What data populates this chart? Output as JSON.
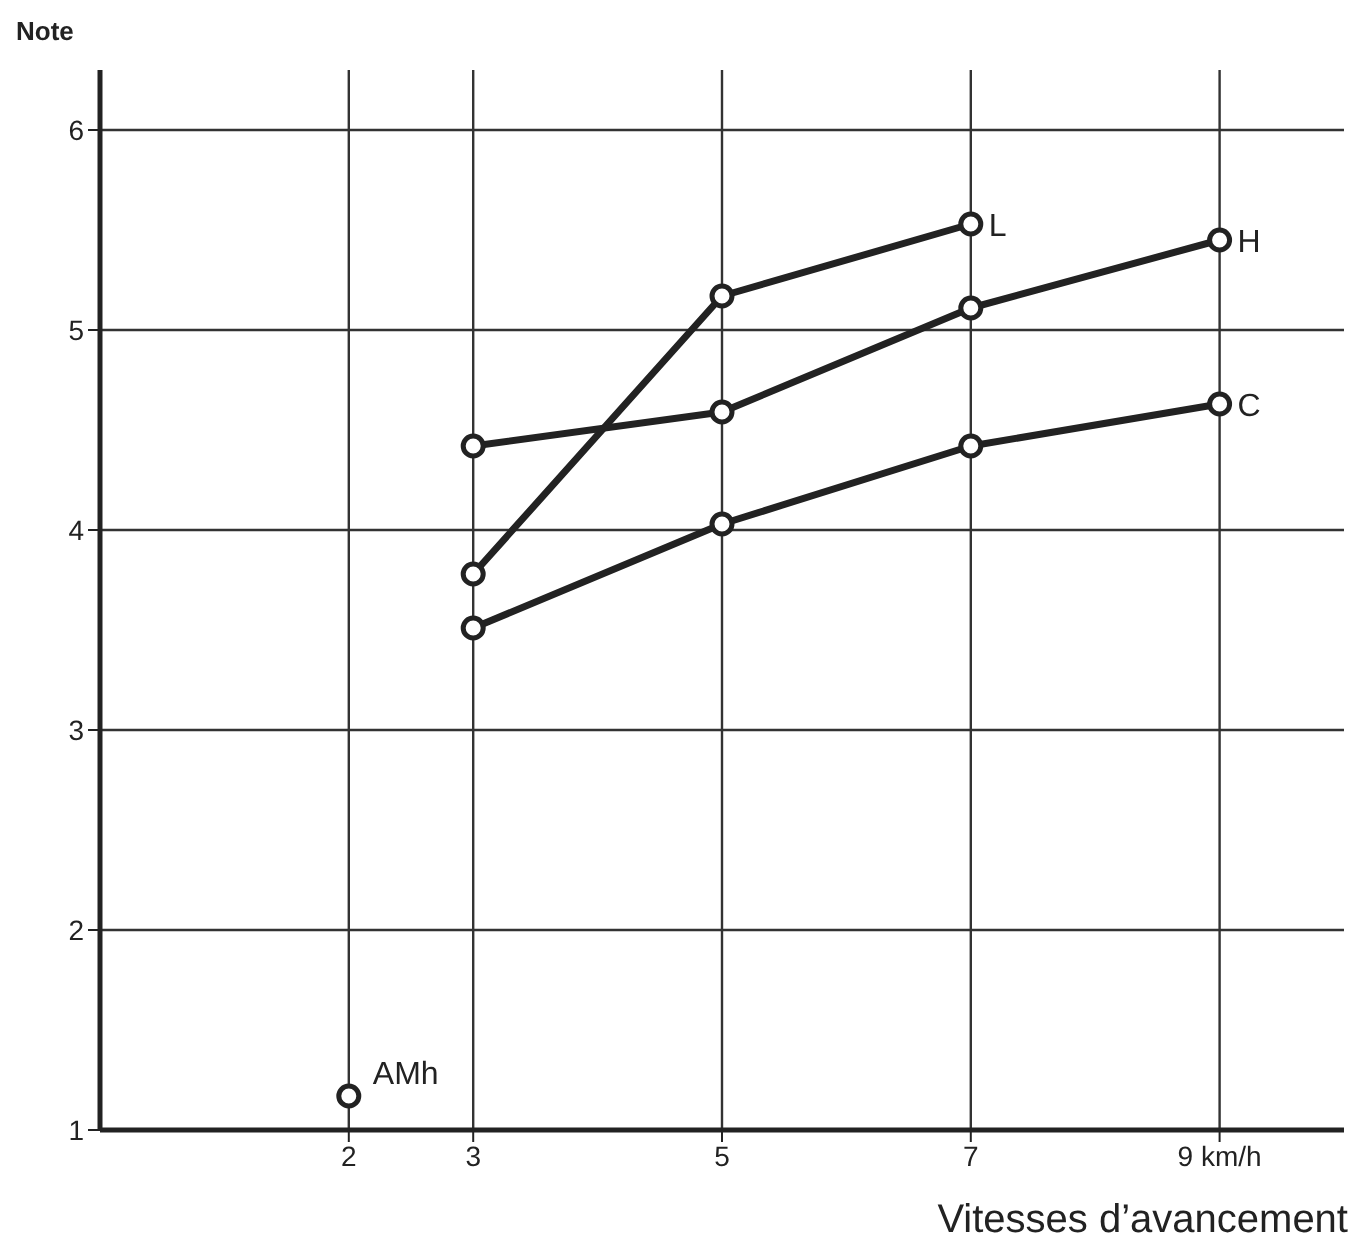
{
  "chart_data": {
    "type": "line",
    "ylabel": "Note",
    "xlabel": "Vitesses d’avancement",
    "xlim": [
      0,
      10
    ],
    "xticks": [
      2,
      3,
      5,
      {
        "value": 7,
        "label": "7"
      },
      {
        "value": 9,
        "label": "9 km/h"
      }
    ],
    "ylim": [
      1,
      6.3
    ],
    "yticks": [
      1,
      2,
      3,
      4,
      5,
      6
    ],
    "grid": true,
    "legend": false,
    "marker": "circle",
    "line_style": "solid",
    "series": [
      {
        "name": "L",
        "color": "#222222",
        "x": [
          3,
          5,
          7
        ],
        "values": [
          3.78,
          5.17,
          5.53
        ]
      },
      {
        "name": "H",
        "color": "#222222",
        "x": [
          3,
          5,
          7,
          9
        ],
        "values": [
          4.42,
          4.59,
          5.11,
          5.45
        ]
      },
      {
        "name": "C",
        "color": "#222222",
        "x": [
          3,
          5,
          7,
          9
        ],
        "values": [
          3.51,
          4.03,
          4.42,
          4.63
        ]
      },
      {
        "name": "AMh",
        "type": "scatter",
        "color": "#222222",
        "x": [
          2
        ],
        "values": [
          1.17
        ]
      }
    ]
  }
}
